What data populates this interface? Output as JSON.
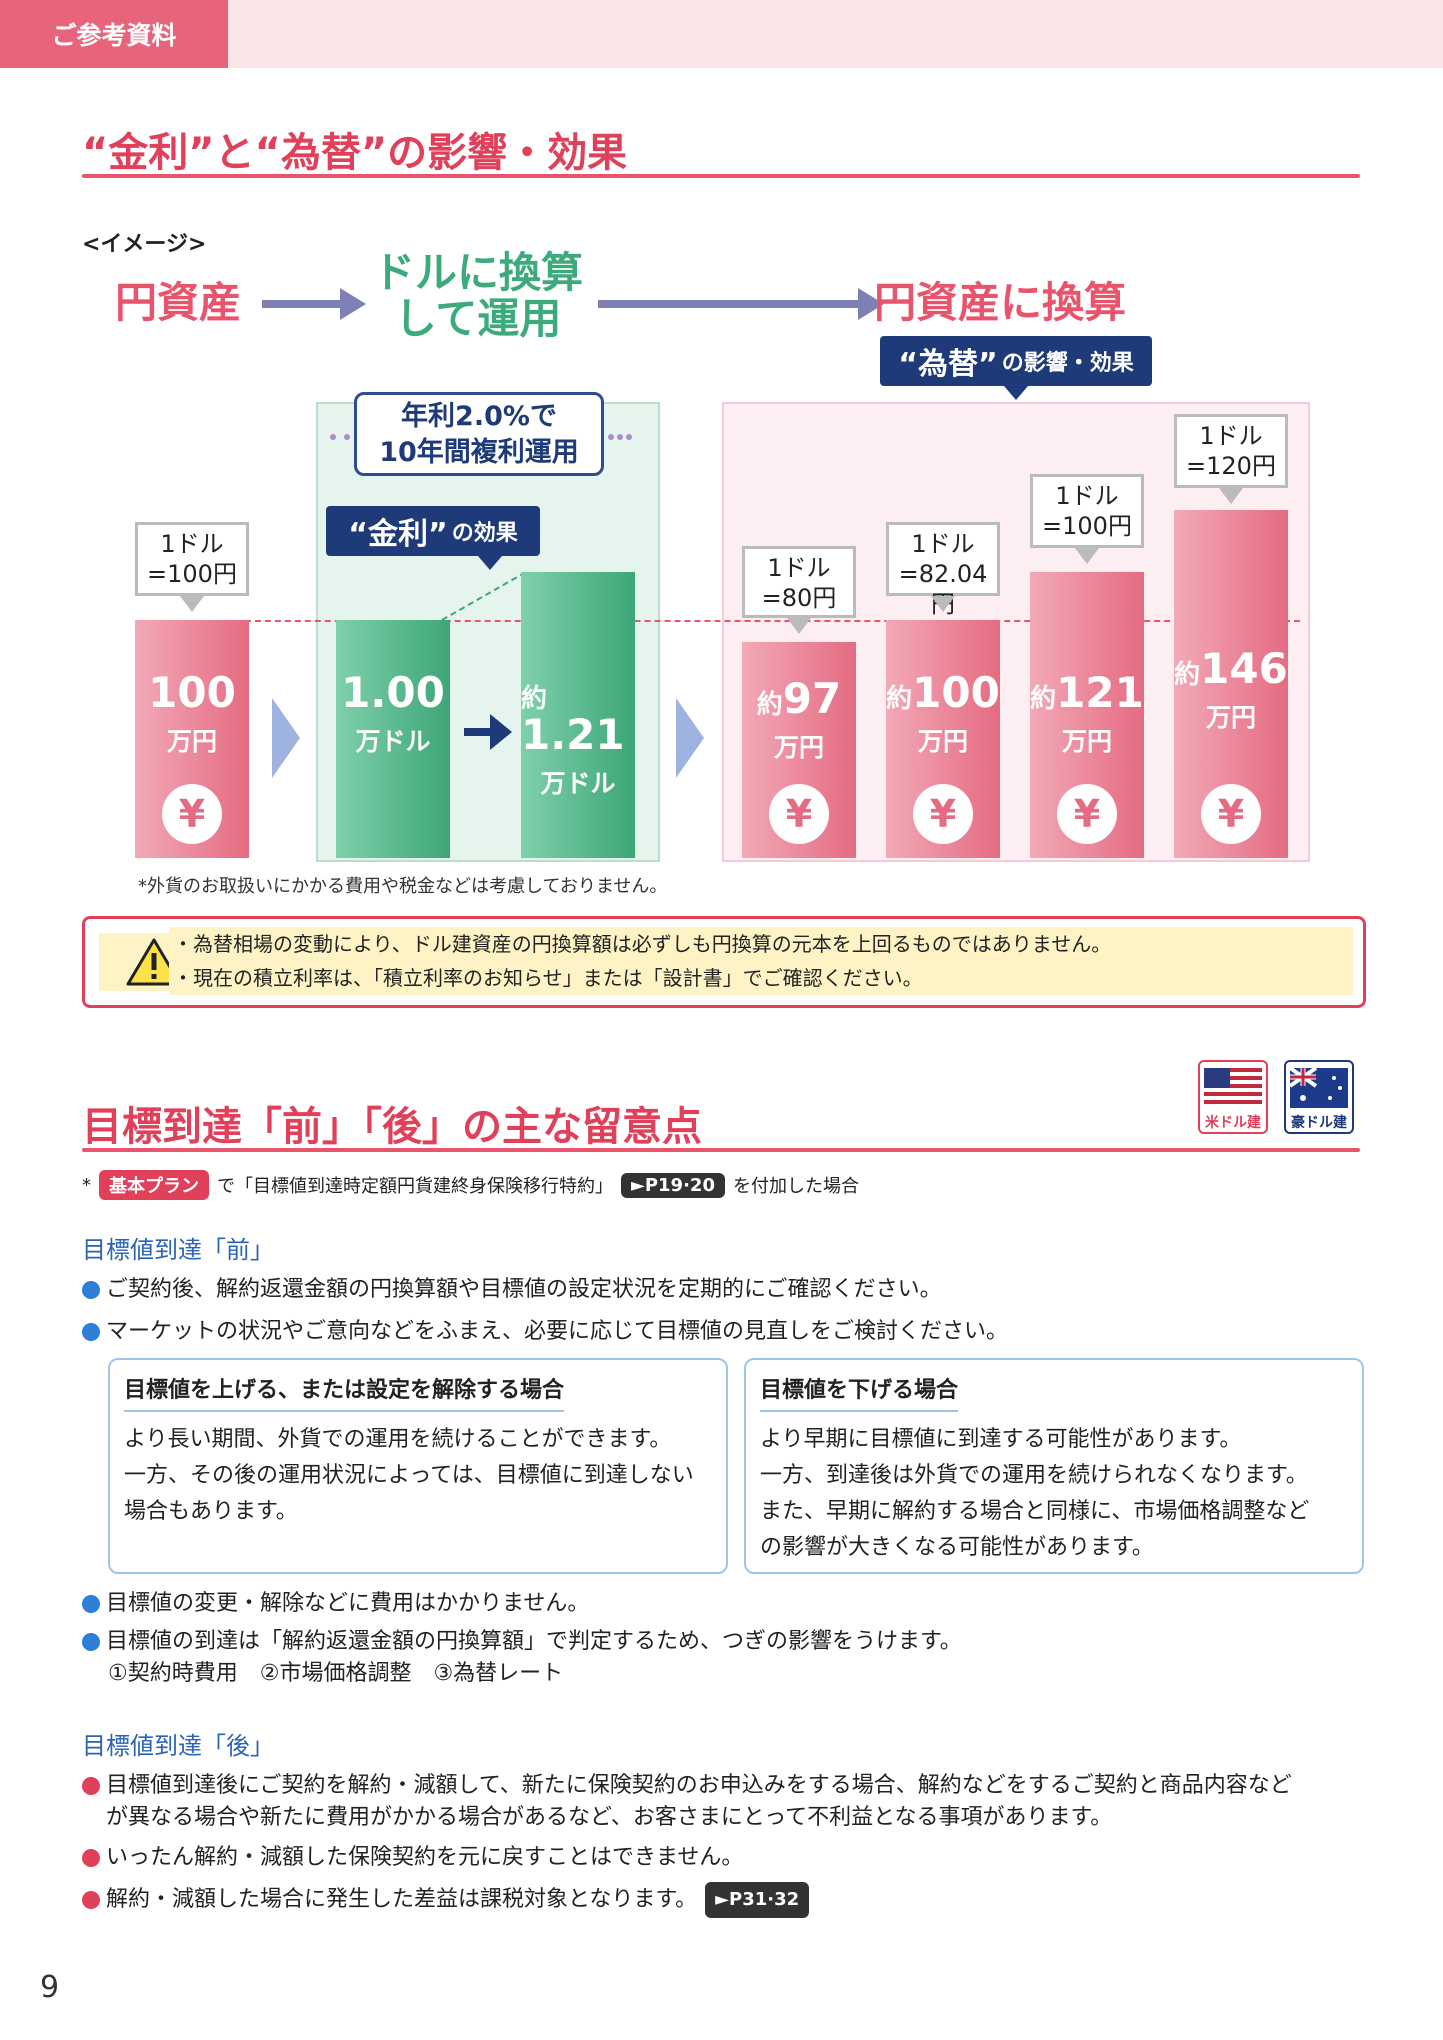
{
  "header": {
    "tab_label": "ご参考資料"
  },
  "section1": {
    "title": "“金利”と“為替”の影響・効果",
    "image_label": "<イメージ>",
    "flow": {
      "step1": "円資産",
      "step2_line1": "ドルに換算",
      "step2_line2": "して運用",
      "step3": "円資産に換算"
    },
    "fx_effect": {
      "big": "“為替”",
      "small": "の影響・効果"
    },
    "interest_effect": {
      "big": "“金利”",
      "small": "の効果"
    },
    "interest_box": {
      "line1": "年利2.0%で",
      "line2": "10年間複利運用"
    },
    "bars": [
      {
        "pre": "",
        "value": "100",
        "unit": "万円",
        "bubble1": "1ドル",
        "bubble2": "=100円"
      },
      {
        "pre": "",
        "value": "1.00",
        "unit": "万ドル"
      },
      {
        "pre": "約",
        "value": "1.21",
        "unit": "万ドル"
      },
      {
        "pre": "約",
        "value": "97",
        "unit": "万円",
        "bubble1": "1ドル",
        "bubble2": "=80円"
      },
      {
        "pre": "約",
        "value": "100",
        "unit": "万円",
        "bubble1": "1ドル",
        "bubble2": "=82.04円"
      },
      {
        "pre": "約",
        "value": "121",
        "unit": "万円",
        "bubble1": "1ドル",
        "bubble2": "=100円"
      },
      {
        "pre": "約",
        "value": "146",
        "unit": "万円",
        "bubble1": "1ドル",
        "bubble2": "=120円"
      }
    ],
    "yen_symbol": "¥",
    "footnote": "*外貨のお取扱いにかかる費用や税金などは考慮しておりません。",
    "warning": [
      "・為替相場の変動により、ドル建資産の円換算額は必ずしも円換算の元本を上回るものではありません。",
      "・現在の積立利率は、「積立利率のお知らせ」または「設計書」でご確認ください。"
    ]
  },
  "section2": {
    "title": "目標到達「前」「後」の主な留意点",
    "flags": {
      "us": "米ドル建",
      "au": "豪ドル建"
    },
    "note": {
      "prefix": "*",
      "plan": "基本プラン",
      "mid": "で「目標値到達時定額円貨建終身保険移行特約」",
      "page": "►P19·20",
      "suffix": "を付加した場合"
    },
    "before": {
      "heading": "目標値到達「前」",
      "bullets": [
        "ご契約後、解約返還金額の円換算額や目標値の設定状況を定期的にご確認ください。",
        "マーケットの状況やご意向などをふまえ、必要に応じて目標値の見直しをご検討ください。"
      ],
      "card_left": {
        "title": "目標値を上げる、または設定を解除する場合",
        "lines": [
          "より長い期間、外貨での運用を続けることができます。",
          "一方、その後の運用状況によっては、目標値に到達しない",
          "場合もあります。"
        ]
      },
      "card_right": {
        "title": "目標値を下げる場合",
        "lines": [
          "より早期に目標値に到達する可能性があります。",
          "一方、到達後は外貨での運用を続けられなくなります。",
          "また、早期に解約する場合と同様に、市場価格調整など",
          "の影響が大きくなる可能性があります。"
        ]
      },
      "bullets2": [
        "目標値の変更・解除などに費用はかかりません。",
        "目標値の到達は「解約返還金額の円換算額」で判定するため、つぎの影響をうけます。"
      ],
      "factors": "①契約時費用　②市場価格調整　③為替レート"
    },
    "after": {
      "heading": "目標値到達「後」",
      "bullet1_line1": "目標値到達後にご契約を解約・減額して、新たに保険契約のお申込みをする場合、解約などをするご契約と商品内容など",
      "bullet1_line2": "が異なる場合や新たに費用がかかる場合があるなど、お客さまにとって不利益となる事項があります。",
      "bullet2": "いったん解約・減額した保険契約を元に戻すことはできません。",
      "bullet3": "解約・減額した場合に発生した差益は課税対象となります。",
      "bullet3_page": "►P31·32"
    }
  },
  "page_number": "9"
}
